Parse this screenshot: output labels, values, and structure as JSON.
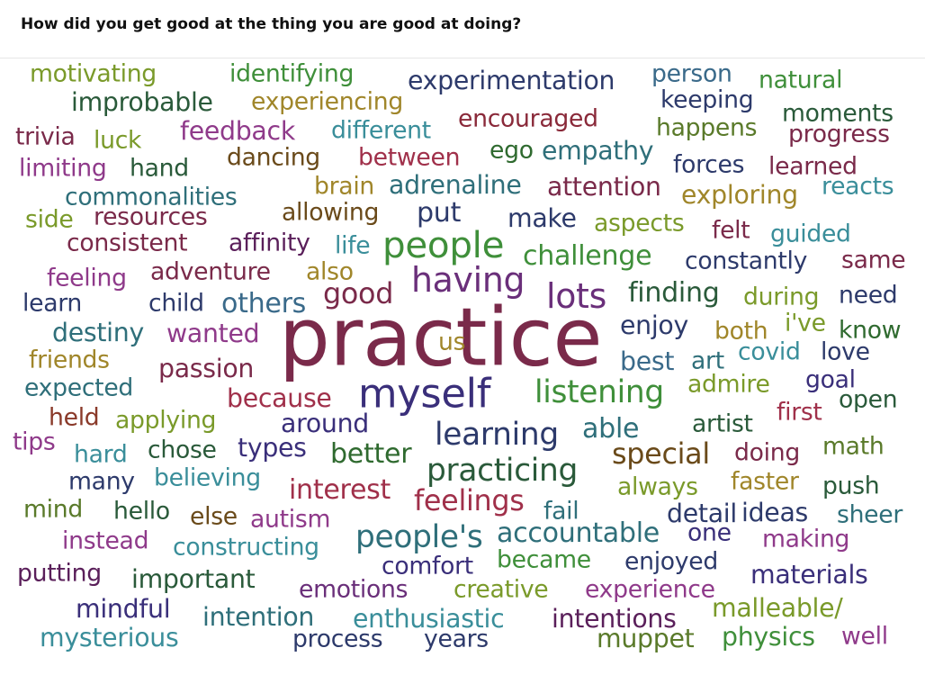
{
  "question": "How did you get good at the thing you are good at doing?",
  "palette": {
    "olive": "#8a9a30",
    "green": "#3f8f3a",
    "navy": "#2d3a6b",
    "teal": "#2f6f7a",
    "lightteal": "#3a8e9a",
    "steel": "#3a6a8a",
    "maroon": "#7a2a4a",
    "magenta": "#8f3a8a",
    "purple": "#6a2f7a",
    "darkred": "#8a2a3a",
    "crimson": "#a0304a",
    "brown": "#6a4a1a",
    "gold": "#a0862a",
    "forest": "#2f6a2f",
    "darkgreen": "#2a5a3a",
    "plum": "#5a1f5a",
    "indigo": "#3a2f7a",
    "rust": "#8a3a2a",
    "yellowgreen": "#7a9a2a",
    "dullgreen": "#5a7a2a"
  },
  "words": [
    {
      "text": "motivating",
      "weight": 1.0,
      "color": "yellowgreen"
    },
    {
      "text": "identifying",
      "weight": 1.0,
      "color": "green"
    },
    {
      "text": "experimentation",
      "weight": 1.0,
      "color": "navy"
    },
    {
      "text": "person",
      "weight": 1.0,
      "color": "steel"
    },
    {
      "text": "natural",
      "weight": 1.0,
      "color": "green"
    },
    {
      "text": "improbable",
      "weight": 1.0,
      "color": "darkgreen"
    },
    {
      "text": "experiencing",
      "weight": 1.0,
      "color": "gold"
    },
    {
      "text": "keeping",
      "weight": 1.0,
      "color": "navy"
    },
    {
      "text": "moments",
      "weight": 1.0,
      "color": "darkgreen"
    },
    {
      "text": "encouraged",
      "weight": 1.0,
      "color": "darkred"
    },
    {
      "text": "trivia",
      "weight": 1.0,
      "color": "maroon"
    },
    {
      "text": "luck",
      "weight": 1.0,
      "color": "yellowgreen"
    },
    {
      "text": "feedback",
      "weight": 1.0,
      "color": "magenta"
    },
    {
      "text": "different",
      "weight": 1.0,
      "color": "lightteal"
    },
    {
      "text": "happens",
      "weight": 1.0,
      "color": "dullgreen"
    },
    {
      "text": "progress",
      "weight": 1.0,
      "color": "maroon"
    },
    {
      "text": "ego",
      "weight": 1.0,
      "color": "forest"
    },
    {
      "text": "empathy",
      "weight": 1.0,
      "color": "teal"
    },
    {
      "text": "limiting",
      "weight": 1.0,
      "color": "magenta"
    },
    {
      "text": "hand",
      "weight": 1.0,
      "color": "darkgreen"
    },
    {
      "text": "dancing",
      "weight": 1.0,
      "color": "brown"
    },
    {
      "text": "between",
      "weight": 1.0,
      "color": "crimson"
    },
    {
      "text": "forces",
      "weight": 1.0,
      "color": "navy"
    },
    {
      "text": "learned",
      "weight": 1.0,
      "color": "maroon"
    },
    {
      "text": "brain",
      "weight": 1.0,
      "color": "gold"
    },
    {
      "text": "adrenaline",
      "weight": 1.0,
      "color": "teal"
    },
    {
      "text": "attention",
      "weight": 1.0,
      "color": "maroon"
    },
    {
      "text": "exploring",
      "weight": 1.0,
      "color": "gold"
    },
    {
      "text": "reacts",
      "weight": 1.0,
      "color": "lightteal"
    },
    {
      "text": "commonalities",
      "weight": 1.0,
      "color": "teal"
    },
    {
      "text": "side",
      "weight": 1.0,
      "color": "yellowgreen"
    },
    {
      "text": "resources",
      "weight": 1.0,
      "color": "maroon"
    },
    {
      "text": "allowing",
      "weight": 1.0,
      "color": "brown"
    },
    {
      "text": "put",
      "weight": 1.0,
      "color": "navy"
    },
    {
      "text": "make",
      "weight": 1.0,
      "color": "navy"
    },
    {
      "text": "aspects",
      "weight": 1.0,
      "color": "yellowgreen"
    },
    {
      "text": "felt",
      "weight": 1.0,
      "color": "maroon"
    },
    {
      "text": "guided",
      "weight": 1.0,
      "color": "lightteal"
    },
    {
      "text": "consistent",
      "weight": 1.0,
      "color": "maroon"
    },
    {
      "text": "affinity",
      "weight": 1.0,
      "color": "plum"
    },
    {
      "text": "life",
      "weight": 1.0,
      "color": "lightteal"
    },
    {
      "text": "people",
      "weight": 1.0,
      "color": "green"
    },
    {
      "text": "challenge",
      "weight": 1.0,
      "color": "green"
    },
    {
      "text": "constantly",
      "weight": 1.0,
      "color": "navy"
    },
    {
      "text": "same",
      "weight": 1.0,
      "color": "maroon"
    },
    {
      "text": "feeling",
      "weight": 1.0,
      "color": "magenta"
    },
    {
      "text": "adventure",
      "weight": 1.0,
      "color": "maroon"
    },
    {
      "text": "also",
      "weight": 1.0,
      "color": "gold"
    },
    {
      "text": "having",
      "weight": 1.0,
      "color": "purple"
    },
    {
      "text": "learn",
      "weight": 1.0,
      "color": "navy"
    },
    {
      "text": "child",
      "weight": 1.0,
      "color": "navy"
    },
    {
      "text": "others",
      "weight": 1.0,
      "color": "steel"
    },
    {
      "text": "good",
      "weight": 1.0,
      "color": "maroon"
    },
    {
      "text": "lots",
      "weight": 1.0,
      "color": "purple"
    },
    {
      "text": "finding",
      "weight": 1.0,
      "color": "darkgreen"
    },
    {
      "text": "during",
      "weight": 1.0,
      "color": "yellowgreen"
    },
    {
      "text": "need",
      "weight": 1.0,
      "color": "navy"
    },
    {
      "text": "practice",
      "weight": 1.0,
      "color": "maroon"
    },
    {
      "text": "destiny",
      "weight": 1.0,
      "color": "teal"
    },
    {
      "text": "wanted",
      "weight": 1.0,
      "color": "magenta"
    },
    {
      "text": "enjoy",
      "weight": 1.0,
      "color": "navy"
    },
    {
      "text": "both",
      "weight": 1.0,
      "color": "gold"
    },
    {
      "text": "i've",
      "weight": 1.0,
      "color": "yellowgreen"
    },
    {
      "text": "know",
      "weight": 1.0,
      "color": "forest"
    },
    {
      "text": "friends",
      "weight": 1.0,
      "color": "gold"
    },
    {
      "text": "us",
      "weight": 1.0,
      "color": "gold"
    },
    {
      "text": "covid",
      "weight": 1.0,
      "color": "lightteal"
    },
    {
      "text": "love",
      "weight": 1.0,
      "color": "navy"
    },
    {
      "text": "passion",
      "weight": 1.0,
      "color": "maroon"
    },
    {
      "text": "best",
      "weight": 1.0,
      "color": "steel"
    },
    {
      "text": "art",
      "weight": 1.0,
      "color": "teal"
    },
    {
      "text": "goal",
      "weight": 1.0,
      "color": "indigo"
    },
    {
      "text": "expected",
      "weight": 1.0,
      "color": "teal"
    },
    {
      "text": "myself",
      "weight": 1.0,
      "color": "indigo"
    },
    {
      "text": "listening",
      "weight": 1.0,
      "color": "green"
    },
    {
      "text": "admire",
      "weight": 1.0,
      "color": "yellowgreen"
    },
    {
      "text": "open",
      "weight": 1.0,
      "color": "darkgreen"
    },
    {
      "text": "because",
      "weight": 1.0,
      "color": "crimson"
    },
    {
      "text": "first",
      "weight": 1.0,
      "color": "crimson"
    },
    {
      "text": "held",
      "weight": 1.0,
      "color": "rust"
    },
    {
      "text": "applying",
      "weight": 1.0,
      "color": "yellowgreen"
    },
    {
      "text": "around",
      "weight": 1.0,
      "color": "indigo"
    },
    {
      "text": "learning",
      "weight": 1.0,
      "color": "navy"
    },
    {
      "text": "able",
      "weight": 1.0,
      "color": "teal"
    },
    {
      "text": "artist",
      "weight": 1.0,
      "color": "darkgreen"
    },
    {
      "text": "tips",
      "weight": 1.0,
      "color": "magenta"
    },
    {
      "text": "hard",
      "weight": 1.0,
      "color": "lightteal"
    },
    {
      "text": "chose",
      "weight": 1.0,
      "color": "darkgreen"
    },
    {
      "text": "types",
      "weight": 1.0,
      "color": "indigo"
    },
    {
      "text": "better",
      "weight": 1.0,
      "color": "forest"
    },
    {
      "text": "special",
      "weight": 1.0,
      "color": "brown"
    },
    {
      "text": "doing",
      "weight": 1.0,
      "color": "maroon"
    },
    {
      "text": "math",
      "weight": 1.0,
      "color": "dullgreen"
    },
    {
      "text": "practicing",
      "weight": 1.0,
      "color": "darkgreen"
    },
    {
      "text": "many",
      "weight": 1.0,
      "color": "navy"
    },
    {
      "text": "believing",
      "weight": 1.0,
      "color": "lightteal"
    },
    {
      "text": "interest",
      "weight": 1.0,
      "color": "crimson"
    },
    {
      "text": "always",
      "weight": 1.0,
      "color": "yellowgreen"
    },
    {
      "text": "faster",
      "weight": 1.0,
      "color": "gold"
    },
    {
      "text": "push",
      "weight": 1.0,
      "color": "darkgreen"
    },
    {
      "text": "mind",
      "weight": 1.0,
      "color": "dullgreen"
    },
    {
      "text": "hello",
      "weight": 1.0,
      "color": "darkgreen"
    },
    {
      "text": "else",
      "weight": 1.0,
      "color": "brown"
    },
    {
      "text": "autism",
      "weight": 1.0,
      "color": "magenta"
    },
    {
      "text": "feelings",
      "weight": 1.0,
      "color": "crimson"
    },
    {
      "text": "fail",
      "weight": 1.0,
      "color": "teal"
    },
    {
      "text": "detail",
      "weight": 1.0,
      "color": "navy"
    },
    {
      "text": "ideas",
      "weight": 1.0,
      "color": "navy"
    },
    {
      "text": "sheer",
      "weight": 1.0,
      "color": "teal"
    },
    {
      "text": "instead",
      "weight": 1.0,
      "color": "magenta"
    },
    {
      "text": "constructing",
      "weight": 1.0,
      "color": "lightteal"
    },
    {
      "text": "people's",
      "weight": 1.0,
      "color": "teal"
    },
    {
      "text": "accountable",
      "weight": 1.0,
      "color": "teal"
    },
    {
      "text": "one",
      "weight": 1.0,
      "color": "indigo"
    },
    {
      "text": "making",
      "weight": 1.0,
      "color": "magenta"
    },
    {
      "text": "putting",
      "weight": 1.0,
      "color": "plum"
    },
    {
      "text": "important",
      "weight": 1.0,
      "color": "darkgreen"
    },
    {
      "text": "comfort",
      "weight": 1.0,
      "color": "indigo"
    },
    {
      "text": "became",
      "weight": 1.0,
      "color": "green"
    },
    {
      "text": "enjoyed",
      "weight": 1.0,
      "color": "navy"
    },
    {
      "text": "materials",
      "weight": 1.0,
      "color": "indigo"
    },
    {
      "text": "emotions",
      "weight": 1.0,
      "color": "purple"
    },
    {
      "text": "creative",
      "weight": 1.0,
      "color": "yellowgreen"
    },
    {
      "text": "experience",
      "weight": 1.0,
      "color": "magenta"
    },
    {
      "text": "mindful",
      "weight": 1.0,
      "color": "indigo"
    },
    {
      "text": "malleable/",
      "weight": 1.0,
      "color": "yellowgreen"
    },
    {
      "text": "intention",
      "weight": 1.0,
      "color": "teal"
    },
    {
      "text": "enthusiastic",
      "weight": 1.0,
      "color": "lightteal"
    },
    {
      "text": "intentions",
      "weight": 1.0,
      "color": "plum"
    },
    {
      "text": "mysterious",
      "weight": 1.0,
      "color": "lightteal"
    },
    {
      "text": "process",
      "weight": 1.0,
      "color": "navy"
    },
    {
      "text": "years",
      "weight": 1.0,
      "color": "navy"
    },
    {
      "text": "muppet",
      "weight": 1.0,
      "color": "dullgreen"
    },
    {
      "text": "physics",
      "weight": 1.0,
      "color": "green"
    },
    {
      "text": "well",
      "weight": 1.0,
      "color": "magenta"
    }
  ]
}
